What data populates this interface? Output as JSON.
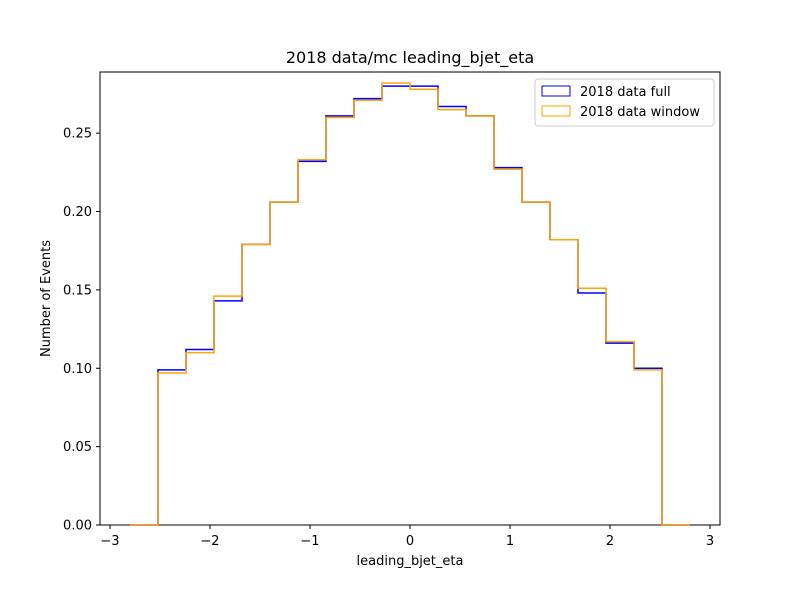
{
  "chart_data": {
    "type": "histogram-step",
    "title": "2018 data/mc leading_bjet_eta",
    "xlabel": "leading_bjet_eta",
    "ylabel": "Number of Events",
    "xlim": [
      -3.1,
      3.1
    ],
    "ylim": [
      0,
      0.289
    ],
    "xticks": [
      -3,
      -2,
      -1,
      0,
      1,
      2,
      3
    ],
    "xtick_labels": [
      "−3",
      "−2",
      "−1",
      "0",
      "1",
      "2",
      "3"
    ],
    "yticks": [
      0.0,
      0.05,
      0.1,
      0.15,
      0.2,
      0.25
    ],
    "ytick_labels": [
      "0.00",
      "0.05",
      "0.10",
      "0.15",
      "0.20",
      "0.25"
    ],
    "bin_edges": [
      -2.8,
      -2.52,
      -2.24,
      -1.96,
      -1.68,
      -1.4,
      -1.12,
      -0.84,
      -0.56,
      -0.28,
      0.0,
      0.28,
      0.56,
      0.84,
      1.12,
      1.4,
      1.68,
      1.96,
      2.24,
      2.52,
      2.8
    ],
    "legend_position": "upper-right",
    "series": [
      {
        "name": "2018 data full",
        "color": "#0000ff",
        "values": [
          0.0,
          0.099,
          0.112,
          0.143,
          0.179,
          0.206,
          0.232,
          0.261,
          0.272,
          0.28,
          0.28,
          0.267,
          0.261,
          0.228,
          0.206,
          0.182,
          0.148,
          0.116,
          0.1,
          0.0
        ]
      },
      {
        "name": "2018 data window",
        "color": "#ffa500",
        "values": [
          0.0,
          0.097,
          0.11,
          0.146,
          0.179,
          0.206,
          0.233,
          0.26,
          0.271,
          0.282,
          0.278,
          0.265,
          0.261,
          0.227,
          0.206,
          0.182,
          0.151,
          0.117,
          0.099,
          0.0
        ]
      }
    ]
  }
}
